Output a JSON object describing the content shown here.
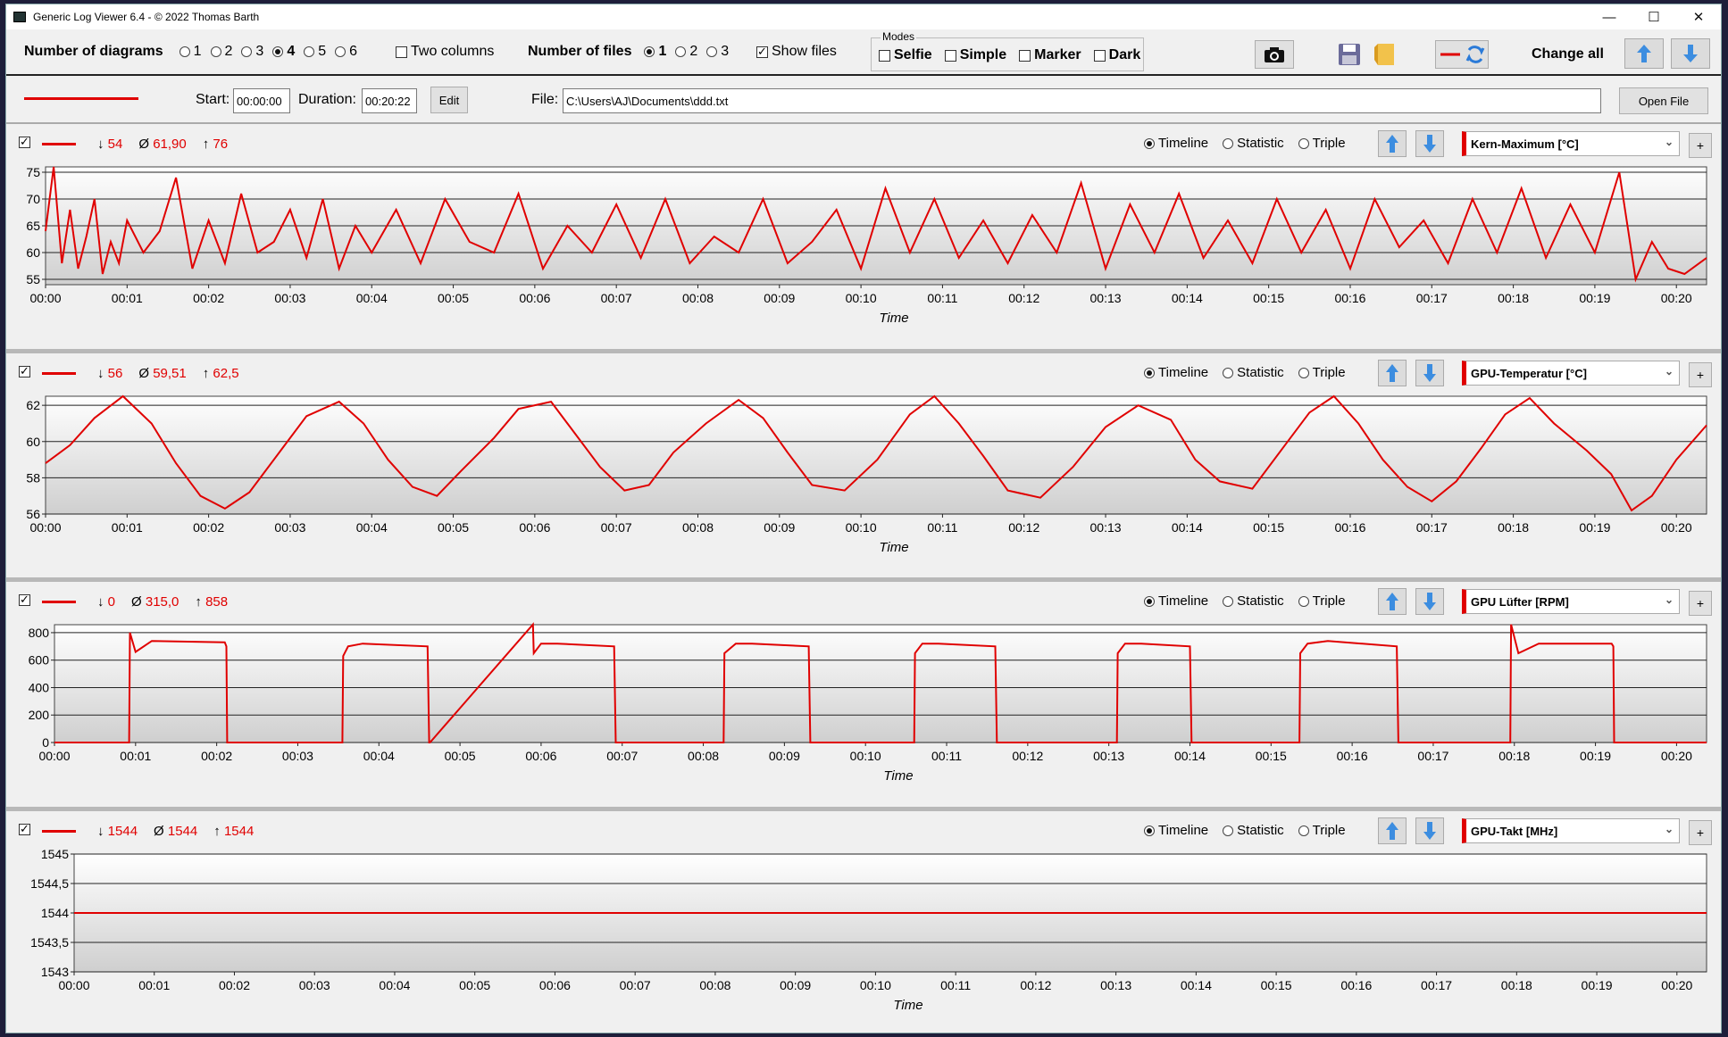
{
  "window": {
    "title": "Generic Log Viewer 6.4 - © 2022 Thomas Barth"
  },
  "toolbar": {
    "diagrams_label": "Number of diagrams",
    "diagram_options": [
      "1",
      "2",
      "3",
      "4",
      "5",
      "6"
    ],
    "diagrams_selected": "4",
    "two_columns_label": "Two columns",
    "files_label": "Number of files",
    "file_options": [
      "1",
      "2",
      "3"
    ],
    "files_selected": "1",
    "show_files_label": "Show files",
    "modes_label": "Modes",
    "modes": [
      "Selfie",
      "Simple",
      "Marker",
      "Dark"
    ],
    "change_all_label": "Change all"
  },
  "filebar": {
    "start_label": "Start:",
    "start_value": "00:00:00",
    "duration_label": "Duration:",
    "duration_value": "00:20:22",
    "edit_label": "Edit",
    "file_label": "File:",
    "file_path": "C:\\Users\\AJ\\Documents\\ddd.txt",
    "open_label": "Open File"
  },
  "view_options": [
    "Timeline",
    "Statistic",
    "Triple"
  ],
  "time_label": "Time",
  "time_ticks": [
    "00:00",
    "00:01",
    "00:02",
    "00:03",
    "00:04",
    "00:05",
    "00:06",
    "00:07",
    "00:08",
    "00:09",
    "00:10",
    "00:11",
    "00:12",
    "00:13",
    "00:14",
    "00:15",
    "00:16",
    "00:17",
    "00:18",
    "00:19",
    "00:20"
  ],
  "colors": {
    "series": "#e00000",
    "accent": "#3c8de0"
  },
  "chart_data": [
    {
      "type": "line",
      "series_name": "Kern-Maximum [°C]",
      "stats": {
        "min": "54",
        "avg": "61,90",
        "max": "76"
      },
      "ylim": [
        54,
        76
      ],
      "yticks": [
        "55",
        "60",
        "65",
        "70",
        "75"
      ],
      "xlim": [
        0,
        20.37
      ],
      "x": [
        0,
        0.1,
        0.2,
        0.3,
        0.4,
        0.5,
        0.6,
        0.7,
        0.8,
        0.9,
        1.0,
        1.2,
        1.4,
        1.6,
        1.8,
        2.0,
        2.2,
        2.4,
        2.6,
        2.8,
        3.0,
        3.2,
        3.4,
        3.6,
        3.8,
        4.0,
        4.3,
        4.6,
        4.9,
        5.2,
        5.5,
        5.8,
        6.1,
        6.4,
        6.7,
        7.0,
        7.3,
        7.6,
        7.9,
        8.2,
        8.5,
        8.8,
        9.1,
        9.4,
        9.7,
        10.0,
        10.3,
        10.6,
        10.9,
        11.2,
        11.5,
        11.8,
        12.1,
        12.4,
        12.7,
        13.0,
        13.3,
        13.6,
        13.9,
        14.2,
        14.5,
        14.8,
        15.1,
        15.4,
        15.7,
        16.0,
        16.3,
        16.6,
        16.9,
        17.2,
        17.5,
        17.8,
        18.1,
        18.4,
        18.7,
        19.0,
        19.3,
        19.5,
        19.7,
        19.9,
        20.1,
        20.37
      ],
      "y": [
        64,
        76,
        58,
        68,
        57,
        63,
        70,
        56,
        62,
        58,
        66,
        60,
        64,
        74,
        57,
        66,
        58,
        71,
        60,
        62,
        68,
        59,
        70,
        57,
        65,
        60,
        68,
        58,
        70,
        62,
        60,
        71,
        57,
        65,
        60,
        69,
        59,
        70,
        58,
        63,
        60,
        70,
        58,
        62,
        68,
        57,
        72,
        60,
        70,
        59,
        66,
        58,
        67,
        60,
        73,
        57,
        69,
        60,
        71,
        59,
        66,
        58,
        70,
        60,
        68,
        57,
        70,
        61,
        66,
        58,
        70,
        60,
        72,
        59,
        69,
        60,
        75,
        55,
        62,
        57,
        56,
        59
      ]
    },
    {
      "type": "line",
      "series_name": "GPU-Temperatur [°C]",
      "stats": {
        "min": "56",
        "avg": "59,51",
        "max": "62,5"
      },
      "ylim": [
        56,
        62.5
      ],
      "yticks": [
        "56",
        "58",
        "60",
        "62"
      ],
      "xlim": [
        0,
        20.37
      ],
      "x": [
        0,
        0.3,
        0.6,
        0.95,
        1.3,
        1.6,
        1.9,
        2.2,
        2.5,
        2.9,
        3.2,
        3.6,
        3.9,
        4.2,
        4.5,
        4.8,
        5.1,
        5.5,
        5.8,
        6.2,
        6.5,
        6.8,
        7.1,
        7.4,
        7.7,
        8.1,
        8.5,
        8.8,
        9.1,
        9.4,
        9.8,
        10.2,
        10.6,
        10.9,
        11.2,
        11.5,
        11.8,
        12.2,
        12.6,
        13.0,
        13.4,
        13.8,
        14.1,
        14.4,
        14.8,
        15.2,
        15.5,
        15.8,
        16.1,
        16.4,
        16.7,
        17.0,
        17.3,
        17.6,
        17.9,
        18.2,
        18.5,
        18.9,
        19.2,
        19.45,
        19.7,
        20.0,
        20.37
      ],
      "y": [
        58.8,
        59.8,
        61.3,
        62.5,
        61.0,
        58.8,
        57.0,
        56.3,
        57.2,
        59.6,
        61.4,
        62.2,
        61.0,
        59.0,
        57.5,
        57.0,
        58.4,
        60.2,
        61.8,
        62.2,
        60.4,
        58.6,
        57.3,
        57.6,
        59.4,
        61.0,
        62.3,
        61.3,
        59.4,
        57.6,
        57.3,
        59.0,
        61.5,
        62.5,
        61.0,
        59.2,
        57.3,
        56.9,
        58.6,
        60.8,
        62.0,
        61.2,
        59.0,
        57.8,
        57.4,
        59.8,
        61.6,
        62.5,
        61.0,
        59.0,
        57.5,
        56.7,
        57.8,
        59.6,
        61.5,
        62.4,
        61.0,
        59.5,
        58.2,
        56.2,
        57.0,
        59.0,
        60.9
      ]
    },
    {
      "type": "line",
      "series_name": "GPU Lüfter [RPM]",
      "stats": {
        "min": "0",
        "avg": "315,0",
        "max": "858"
      },
      "ylim": [
        0,
        858
      ],
      "yticks": [
        "0",
        "200",
        "400",
        "600",
        "800"
      ],
      "xlim": [
        0,
        20.37
      ],
      "x": [
        0,
        0.92,
        0.93,
        1.0,
        1.2,
        2.1,
        2.12,
        2.13,
        3.55,
        3.56,
        3.62,
        3.8,
        4.6,
        4.62,
        4.63,
        5.9,
        5.91,
        6.0,
        6.2,
        6.9,
        6.92,
        6.93,
        8.25,
        8.26,
        8.4,
        8.6,
        9.3,
        9.32,
        9.33,
        10.6,
        10.61,
        10.7,
        10.9,
        11.6,
        11.62,
        11.63,
        13.1,
        13.11,
        13.2,
        13.4,
        14.0,
        14.02,
        14.03,
        15.35,
        15.36,
        15.45,
        15.7,
        16.55,
        16.57,
        16.58,
        17.95,
        17.96,
        18.05,
        18.3,
        19.2,
        19.22,
        19.23,
        20.37
      ],
      "y": [
        0,
        0,
        800,
        660,
        740,
        730,
        700,
        0,
        0,
        630,
        700,
        720,
        700,
        0,
        0,
        860,
        650,
        720,
        720,
        700,
        0,
        0,
        0,
        650,
        720,
        720,
        700,
        0,
        0,
        0,
        650,
        720,
        720,
        700,
        0,
        0,
        0,
        650,
        720,
        720,
        700,
        0,
        0,
        0,
        650,
        720,
        740,
        700,
        0,
        0,
        0,
        860,
        650,
        720,
        720,
        700,
        0,
        0
      ],
      "y_note_unused": ""
    },
    {
      "type": "line",
      "series_name": "GPU-Takt [MHz]",
      "stats": {
        "min": "1544",
        "avg": "1544",
        "max": "1544"
      },
      "ylim": [
        1543,
        1545
      ],
      "yticks": [
        "1543",
        "1543,5",
        "1544",
        "1544,5",
        "1545"
      ],
      "xlim": [
        0,
        20.37
      ],
      "x": [
        0,
        20.37
      ],
      "y": [
        1544,
        1544
      ]
    }
  ]
}
